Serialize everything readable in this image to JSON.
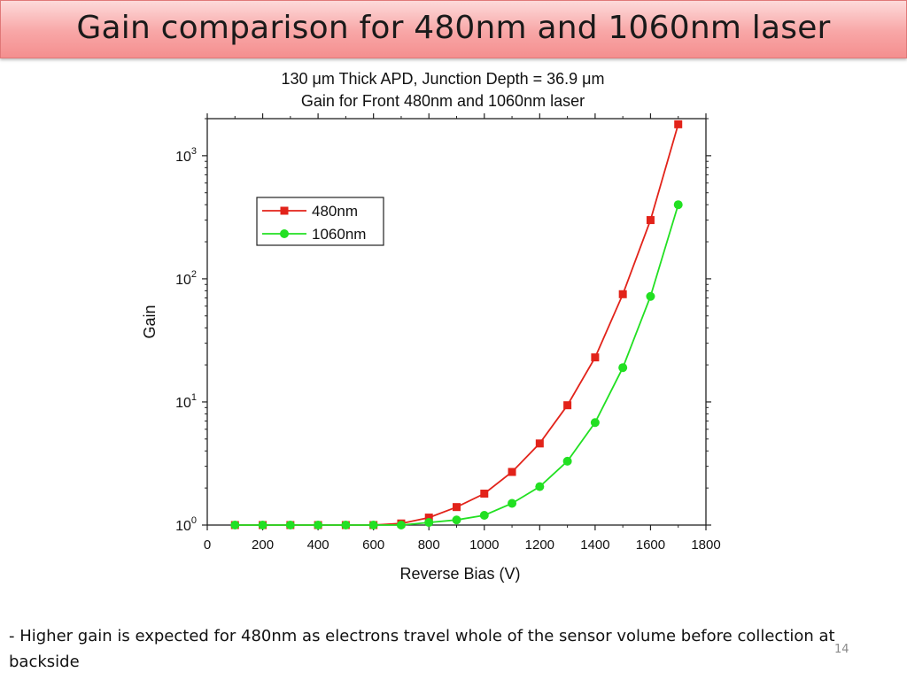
{
  "slide": {
    "title": "Gain comparison for 480nm and 1060nm laser",
    "caption": "- Higher gain is expected for 480nm as electrons travel whole of the sensor volume before collection at backside",
    "page_number": "14"
  },
  "chart_data": {
    "type": "line",
    "title": "130 μm Thick APD, Junction Depth = 36.9 μm",
    "subtitle": "Gain for Front 480nm and 1060nm laser",
    "xlabel": "Reverse Bias (V)",
    "ylabel": "Gain",
    "xlim": [
      0,
      1800
    ],
    "ylim": [
      1,
      2000
    ],
    "yscale": "log",
    "xticks": [
      0,
      200,
      400,
      600,
      800,
      1000,
      1200,
      1400,
      1600,
      1800
    ],
    "yticks": [
      {
        "value": 1,
        "base": "10",
        "exp": "0"
      },
      {
        "value": 10,
        "base": "10",
        "exp": "1"
      },
      {
        "value": 100,
        "base": "10",
        "exp": "2"
      },
      {
        "value": 1000,
        "base": "10",
        "exp": "3"
      }
    ],
    "grid": false,
    "legend_position": "upper-left",
    "x": [
      100,
      200,
      300,
      400,
      500,
      600,
      700,
      800,
      900,
      1000,
      1100,
      1200,
      1300,
      1400,
      1500,
      1600,
      1700
    ],
    "series": [
      {
        "name": "480nm",
        "color": "#e2231a",
        "marker": "square",
        "values": [
          1.0,
          1.0,
          1.0,
          1.0,
          1.0,
          1.0,
          1.03,
          1.15,
          1.4,
          1.8,
          2.7,
          4.6,
          9.4,
          23,
          75,
          300,
          1800
        ]
      },
      {
        "name": "1060nm",
        "color": "#22e022",
        "marker": "circle",
        "values": [
          1.0,
          1.0,
          1.0,
          1.0,
          1.0,
          1.0,
          1.0,
          1.05,
          1.1,
          1.2,
          1.5,
          2.05,
          3.3,
          6.8,
          19,
          72,
          400
        ]
      }
    ]
  }
}
